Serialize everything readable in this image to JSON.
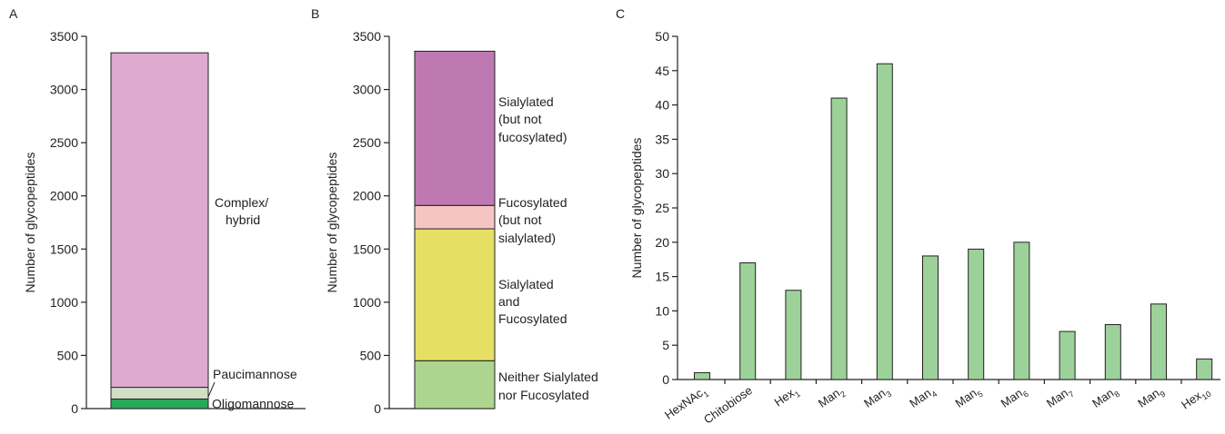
{
  "colors": {
    "complex_hybrid": "#deaad0",
    "paucimannose": "#cfe0c4",
    "oligomannose": "#2aa85a",
    "sialylated": "#bf79b2",
    "fucosylated": "#f7c4c4",
    "sialylated_fucosylated": "#e5e064",
    "neither": "#aed58f",
    "panel_c_bar": "#9dd19a"
  },
  "chart_data": [
    {
      "panel": "A",
      "type": "bar",
      "stacked": true,
      "ylabel": "Number of glycopeptides",
      "ylim": [
        0,
        3500
      ],
      "yticks": [
        "0",
        "500",
        "1000",
        "1500",
        "2000",
        "2500",
        "3000",
        "3500"
      ],
      "segments": [
        {
          "label": "Oligomannose",
          "value": 90,
          "color": "#2aa85a"
        },
        {
          "label": "Paucimannose",
          "value": 110,
          "color": "#cfe0c4"
        },
        {
          "label_lines": [
            "Complex/",
            "hybrid"
          ],
          "value": 3145,
          "color": "#deaad0"
        }
      ]
    },
    {
      "panel": "B",
      "type": "bar",
      "stacked": true,
      "ylabel": "Number of glycopeptides",
      "ylim": [
        0,
        3500
      ],
      "yticks": [
        "0",
        "500",
        "1000",
        "1500",
        "2000",
        "2500",
        "3000",
        "3500"
      ],
      "segments": [
        {
          "label_lines": [
            "Neither Sialylated",
            "nor Fucosylated"
          ],
          "value": 450,
          "color": "#aed58f"
        },
        {
          "label_lines": [
            "Sialylated",
            "and",
            "Fucosylated"
          ],
          "value": 1240,
          "color": "#e5e064"
        },
        {
          "label_lines": [
            "Fucosylated",
            "(but not",
            "sialylated)"
          ],
          "value": 220,
          "color": "#f7c4c4"
        },
        {
          "label_lines": [
            "Sialylated",
            "(but not",
            "fucosylated)"
          ],
          "value": 1450,
          "color": "#bf79b2"
        }
      ]
    },
    {
      "panel": "C",
      "type": "bar",
      "ylabel": "Number of glycopeptides",
      "ylim": [
        0,
        50
      ],
      "yticks": [
        "0",
        "5",
        "10",
        "15",
        "20",
        "25",
        "30",
        "35",
        "40",
        "45",
        "50"
      ],
      "categories": [
        {
          "base": "HexNAc",
          "sub": "1"
        },
        {
          "base": "Chitobiose",
          "sub": ""
        },
        {
          "base": "Hex",
          "sub": "1"
        },
        {
          "base": "Man",
          "sub": "2"
        },
        {
          "base": "Man",
          "sub": "3"
        },
        {
          "base": "Man",
          "sub": "4"
        },
        {
          "base": "Man",
          "sub": "5"
        },
        {
          "base": "Man",
          "sub": "6"
        },
        {
          "base": "Man",
          "sub": "7"
        },
        {
          "base": "Man",
          "sub": "8"
        },
        {
          "base": "Man",
          "sub": "9"
        },
        {
          "base": "Hex",
          "sub": "10"
        }
      ],
      "values": [
        1,
        17,
        13,
        41,
        46,
        18,
        19,
        20,
        7,
        8,
        11,
        3
      ],
      "color": "#9dd19a"
    }
  ]
}
